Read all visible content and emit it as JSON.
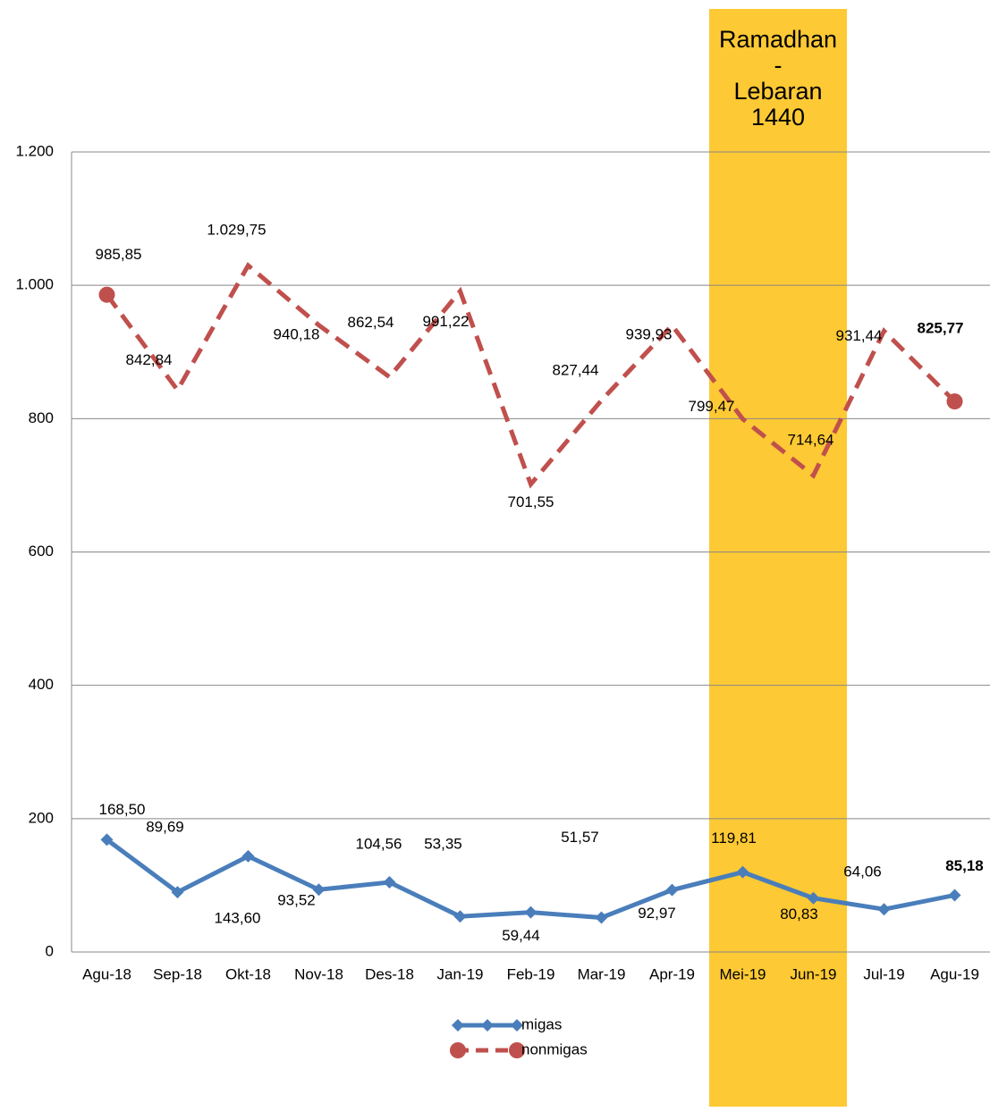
{
  "chart_data": {
    "type": "line",
    "categories": [
      "Agu-18",
      "Sep-18",
      "Okt-18",
      "Nov-18",
      "Des-18",
      "Jan-19",
      "Feb-19",
      "Mar-19",
      "Apr-19",
      "Mei-19",
      "Jun-19",
      "Jul-19",
      "Agu-19"
    ],
    "series": [
      {
        "name": "migas",
        "color": "#4a7ebb",
        "marker": "diamond",
        "dash": false,
        "values": [
          168.5,
          89.69,
          143.6,
          93.52,
          104.56,
          53.35,
          59.44,
          51.57,
          92.97,
          119.81,
          80.83,
          64.06,
          85.18
        ],
        "value_labels": [
          "168,50",
          "89,69",
          "143,60",
          "93,52",
          "104,56",
          "53,35",
          "59,44",
          "51,57",
          "92,97",
          "119,81",
          "80,83",
          "64,06",
          "85,18"
        ]
      },
      {
        "name": "nonmigas",
        "color": "#c0504d",
        "marker": "circle",
        "dash": true,
        "values": [
          985.85,
          842.84,
          1029.75,
          940.18,
          862.54,
          991.22,
          701.55,
          827.44,
          939.93,
          799.47,
          714.64,
          931.44,
          825.77
        ],
        "value_labels": [
          "985,85",
          "842,84",
          "1.029,75",
          "940,18",
          "862,54",
          "991,22",
          "701,55",
          "827,44",
          "939,93",
          "799,47",
          "714,64",
          "931,44",
          "825,77"
        ]
      }
    ],
    "ylim": [
      0,
      1200
    ],
    "yticks": [
      0,
      200,
      400,
      600,
      800,
      {
        "value": 1000,
        "label": "1.000"
      },
      {
        "value": 1200,
        "label": "1.200"
      }
    ],
    "grid": true,
    "legend": "bottom",
    "annotation": {
      "color": "#fdc934",
      "text": [
        "Ramadhan",
        "-",
        "Lebaran",
        "1440"
      ]
    }
  }
}
